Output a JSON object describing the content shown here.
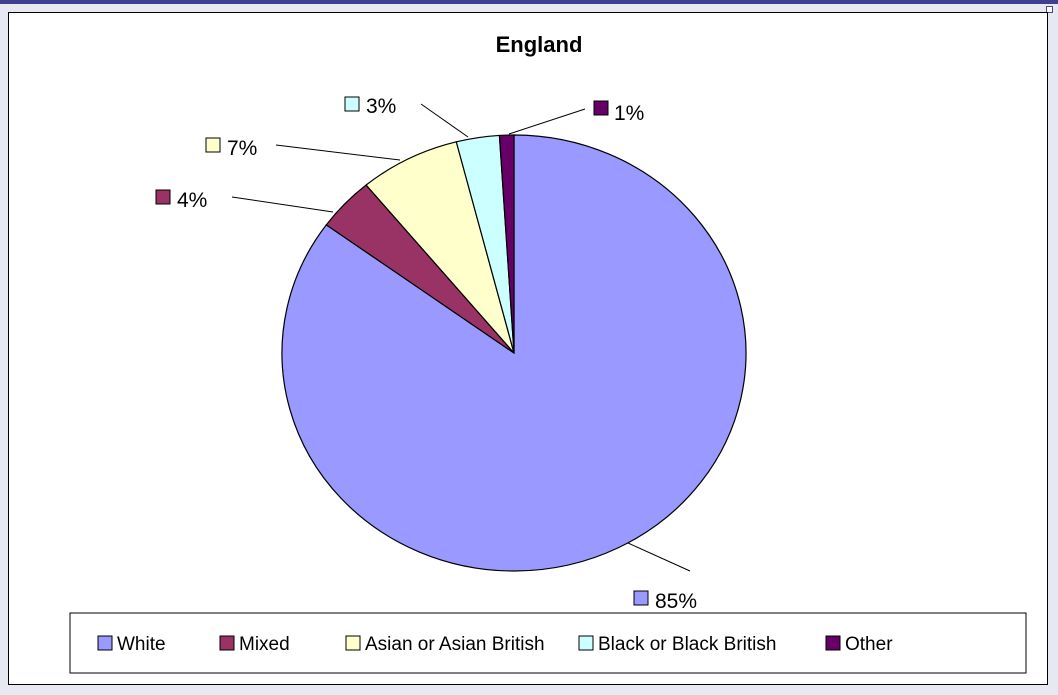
{
  "chart_data": {
    "type": "pie",
    "title": "England",
    "categories": [
      "White",
      "Mixed",
      "Asian or Asian British",
      "Black or Black British",
      "Other"
    ],
    "values": [
      85,
      4,
      7,
      3,
      1
    ],
    "data_labels": [
      "85%",
      "4%",
      "7%",
      "3%",
      "1%"
    ],
    "colors": [
      "#9999ff",
      "#993366",
      "#ffffcc",
      "#ccffff",
      "#660066"
    ],
    "legend_position": "bottom",
    "start": "12 o'clock, clockwise"
  }
}
